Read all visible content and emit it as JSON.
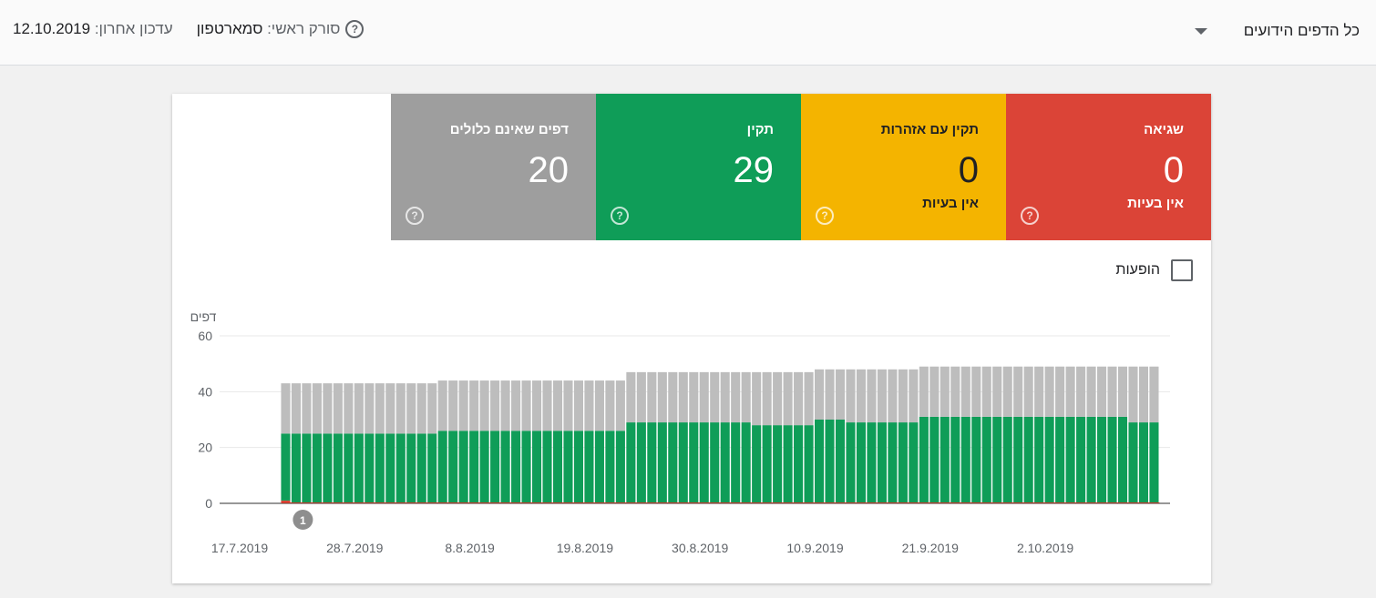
{
  "header": {
    "pages_filter": "כל הדפים הידועים",
    "primary_crawler_label": "סורק ראשי:",
    "primary_crawler_value": "סמארטפון",
    "last_update_label": "עדכון אחרון:",
    "last_update_value": "12.10.2019"
  },
  "tiles": [
    {
      "key": "error",
      "title": "שגיאה",
      "count": "0",
      "sub": "אין בעיות",
      "color": "#db4437"
    },
    {
      "key": "warning",
      "title": "תקין עם אזהרות",
      "count": "0",
      "sub": "אין בעיות",
      "color": "#f4b400"
    },
    {
      "key": "valid",
      "title": "תקין",
      "count": "29",
      "sub": "",
      "color": "#0f9d58"
    },
    {
      "key": "excluded",
      "title": "דפים שאינם כלולים",
      "count": "20",
      "sub": "",
      "color": "#9e9e9e"
    }
  ],
  "impressions_label": "הופעות",
  "chart_data": {
    "type": "bar",
    "stacked": true,
    "ylabel": "דפים",
    "ylim": [
      0,
      60
    ],
    "yticks": [
      0,
      20,
      40,
      60
    ],
    "xtick_labels": [
      "17.7.2019",
      "28.7.2019",
      "8.8.2019",
      "19.8.2019",
      "30.8.2019",
      "10.9.2019",
      "21.9.2019",
      "2.10.2019"
    ],
    "x_start": "17.7.2019",
    "x_end": "12.10.2019",
    "grid": true,
    "annotation": {
      "label": "1",
      "date": "23.7.2019"
    },
    "series": [
      {
        "key": "error",
        "color": "#db4437",
        "start": "21.7.2019",
        "values": [
          1,
          0,
          0,
          0,
          0,
          0,
          0,
          0,
          0,
          0,
          0,
          0,
          0,
          0,
          0,
          0,
          0,
          0,
          0,
          0,
          0,
          0,
          0,
          0,
          0,
          0,
          0,
          0,
          0,
          0,
          0,
          0,
          0,
          0,
          0,
          0,
          0,
          0,
          0,
          0,
          0,
          0,
          0,
          0,
          0,
          0,
          0,
          0,
          0,
          0,
          0,
          0,
          0,
          0,
          0,
          0,
          0,
          0,
          0,
          0,
          0,
          0,
          0,
          0,
          0,
          0,
          0,
          0,
          0,
          0,
          0,
          0,
          0,
          0,
          0,
          0,
          0,
          0,
          0,
          0,
          0,
          0,
          0,
          0
        ]
      },
      {
        "key": "valid",
        "color": "#0f9d58",
        "start": "21.7.2019",
        "values": [
          24,
          25,
          25,
          25,
          25,
          25,
          25,
          25,
          25,
          25,
          25,
          25,
          25,
          25,
          25,
          26,
          26,
          26,
          26,
          26,
          26,
          26,
          26,
          26,
          26,
          26,
          26,
          26,
          26,
          26,
          26,
          26,
          26,
          29,
          29,
          29,
          29,
          29,
          29,
          29,
          29,
          29,
          29,
          29,
          29,
          28,
          28,
          28,
          28,
          28,
          28,
          30,
          30,
          30,
          29,
          29,
          29,
          29,
          29,
          29,
          29,
          31,
          31,
          31,
          31,
          31,
          31,
          31,
          31,
          31,
          31,
          31,
          31,
          31,
          31,
          31,
          31,
          31,
          31,
          31,
          31,
          29,
          29,
          29
        ]
      },
      {
        "key": "excluded",
        "color": "#bdbdbd",
        "start": "21.7.2019",
        "values": [
          18,
          18,
          18,
          18,
          18,
          18,
          18,
          18,
          18,
          18,
          18,
          18,
          18,
          18,
          18,
          18,
          18,
          18,
          18,
          18,
          18,
          18,
          18,
          18,
          18,
          18,
          18,
          18,
          18,
          18,
          18,
          18,
          18,
          18,
          18,
          18,
          18,
          18,
          18,
          18,
          18,
          18,
          18,
          18,
          18,
          19,
          19,
          19,
          19,
          19,
          19,
          18,
          18,
          18,
          19,
          19,
          19,
          19,
          19,
          19,
          19,
          18,
          18,
          18,
          18,
          18,
          18,
          18,
          18,
          18,
          18,
          18,
          18,
          18,
          18,
          18,
          18,
          18,
          18,
          18,
          18,
          20,
          20,
          20
        ]
      }
    ]
  }
}
